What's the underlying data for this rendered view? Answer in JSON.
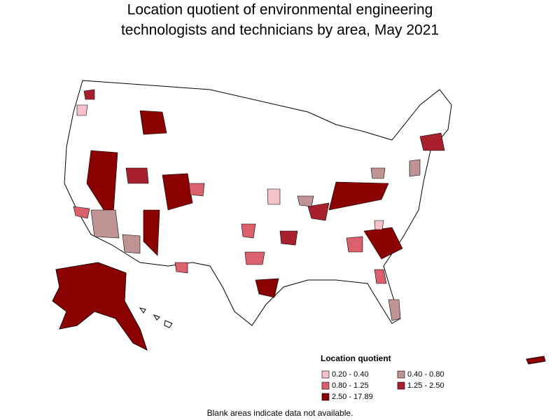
{
  "title_lines": [
    "Location quotient of environmental engineering",
    "technologists and technicians by area, May 2021"
  ],
  "legend": {
    "title": "Location quotient",
    "items": [
      {
        "label": "0.20 - 0.40",
        "color": "#f4c2c8"
      },
      {
        "label": "0.40 - 0.80",
        "color": "#c09494"
      },
      {
        "label": "0.80 - 1.25",
        "color": "#d9606c"
      },
      {
        "label": "1.25 - 2.50",
        "color": "#a8202e"
      },
      {
        "label": "2.50 - 17.89",
        "color": "#8b0000"
      }
    ]
  },
  "footnote": "Blank areas indicate data not available."
}
